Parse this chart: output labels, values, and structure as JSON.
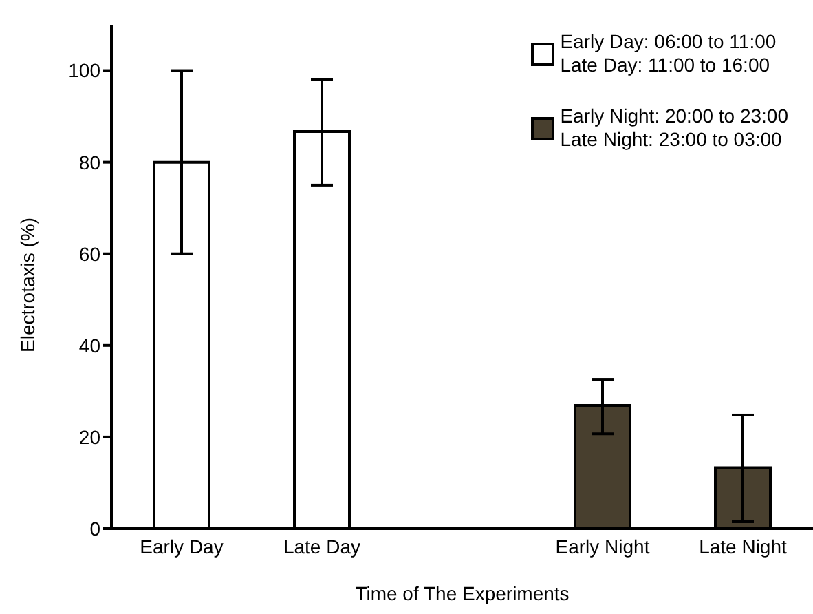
{
  "chart_data": {
    "type": "bar",
    "xlabel": "Time of The Experiments",
    "ylabel": "Electrotaxis (%)",
    "categories": [
      "Early Day",
      "Late Day",
      null,
      "Early Night",
      "Late Night"
    ],
    "series": [
      {
        "name": "Early Day: 06:00 to 11:00\nLate Day: 11:00 to 16:00",
        "color": "#ffffff",
        "values": [
          80,
          86.7,
          null,
          null,
          null
        ],
        "errors": [
          [
            60,
            100
          ],
          [
            75,
            98
          ],
          null,
          null,
          null
        ]
      },
      {
        "name": "Early Night: 20:00 to 23:00\nLate Night: 23:00 to 03:00",
        "color": "#483f2e",
        "values": [
          null,
          null,
          null,
          26.9,
          13.3
        ],
        "errors": [
          null,
          null,
          null,
          [
            20.7,
            32.6
          ],
          [
            1.5,
            24.8
          ]
        ]
      }
    ],
    "ylim": [
      0,
      110
    ],
    "yticks": [
      0,
      20,
      40,
      60,
      80,
      100
    ],
    "grid": false,
    "legend": "top right"
  }
}
